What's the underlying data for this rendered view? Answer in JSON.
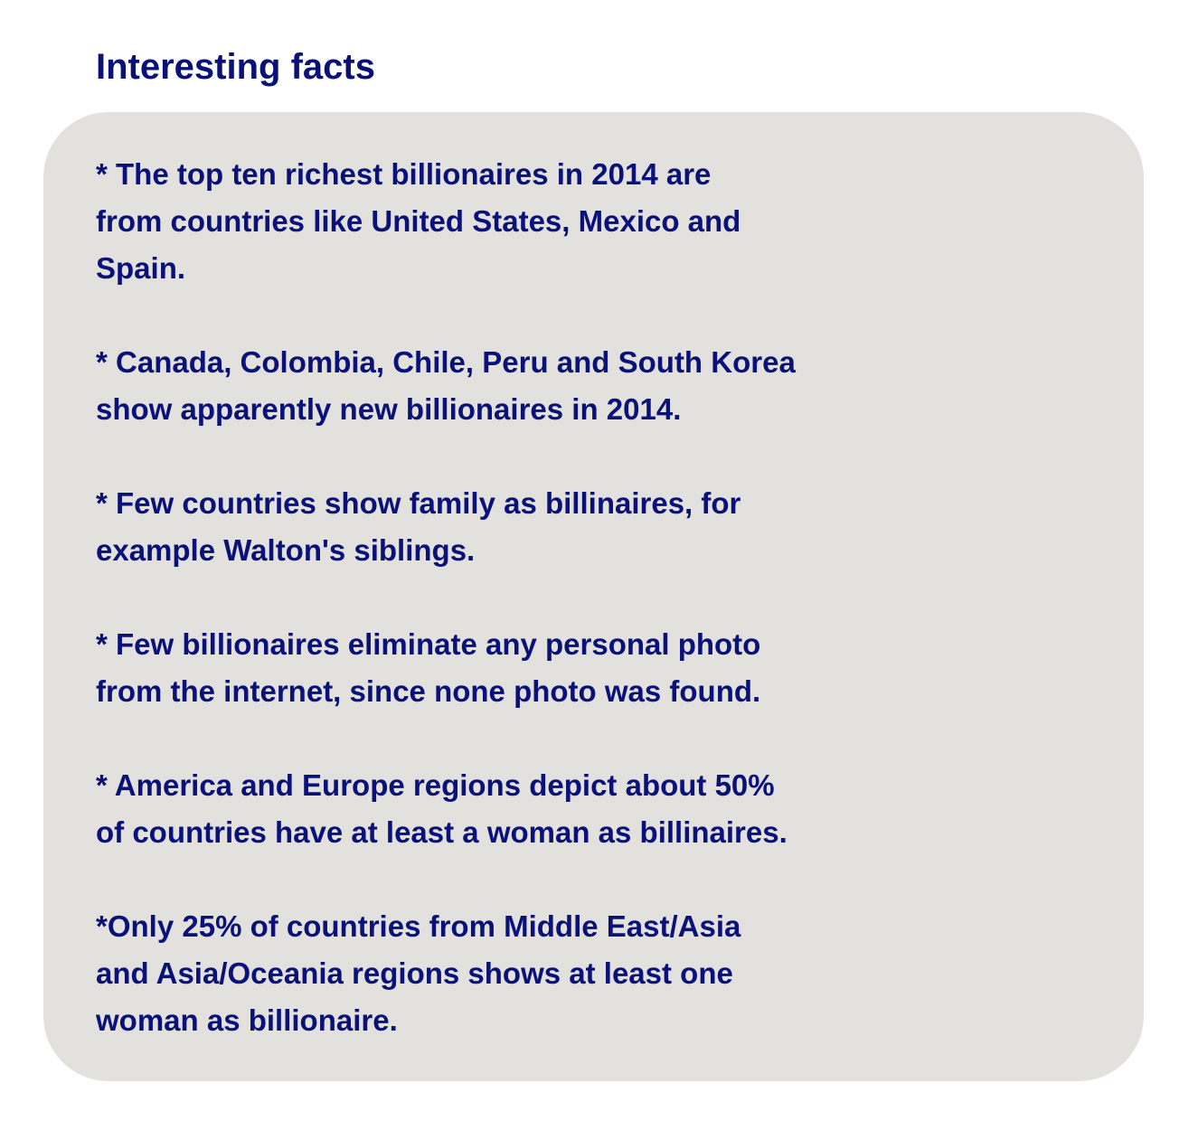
{
  "title": "Interesting facts",
  "facts": [
    {
      "lines": [
        "* The top ten richest billionaires in 2014 are",
        "from countries like United States, Mexico and",
        "Spain."
      ]
    },
    {
      "lines": [
        "* Canada, Colombia, Chile, Peru and South Korea",
        "show apparently new billionaires in 2014."
      ]
    },
    {
      "lines": [
        "* Few countries show family as billinaires, for",
        "example Walton's siblings."
      ]
    },
    {
      "lines": [
        "* Few billionaires eliminate any personal photo",
        "from the internet, since none photo was found."
      ]
    },
    {
      "lines": [
        "* America and Europe regions depict about 50%",
        "of countries have at least a woman as billinaires."
      ]
    },
    {
      "lines": [
        "*Only 25% of countries from Middle East/Asia",
        "and Asia/Oceania regions shows at least one",
        "woman as billionaire."
      ]
    }
  ]
}
